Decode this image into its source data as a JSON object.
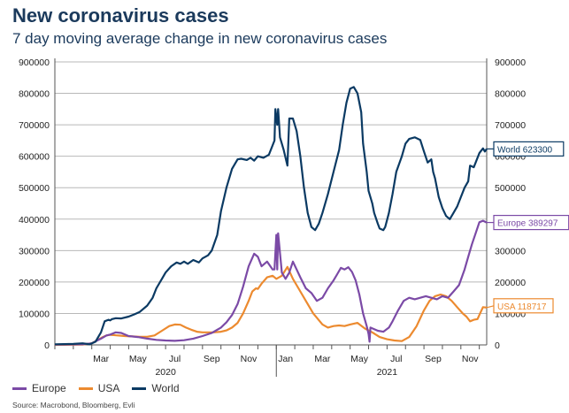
{
  "title": "New coronavirus cases",
  "subtitle": "7 day moving average change in new coronavirus cases",
  "source": "Source: Macrobond, Bloomberg, Evli",
  "colors": {
    "title": "#1b3a5c",
    "world": "#0b3a63",
    "europe": "#7b4aa6",
    "usa": "#ec8a2f",
    "grid": "#b8b8b8",
    "axis_text": "#222222"
  },
  "chart_data": {
    "type": "line",
    "x_unit": "months since Jan 2020 (1.0 = Jan 1, 2020)",
    "xlim": [
      1.0,
      24.4
    ],
    "ylim": [
      0,
      900000
    ],
    "y_ticks_left": [
      "900000",
      "800000",
      "700000",
      "600000",
      "500000",
      "400000",
      "300000",
      "200000",
      "100000",
      "0"
    ],
    "y_ticks_right": [
      "900000",
      "800000",
      "700000",
      "600000",
      "500000",
      "400000",
      "300000",
      "200000",
      "100000",
      "0"
    ],
    "x_tick_labels": [
      {
        "label": "Mar",
        "x": 3.5
      },
      {
        "label": "May",
        "x": 5.5
      },
      {
        "label": "Jul",
        "x": 7.5
      },
      {
        "label": "Sep",
        "x": 9.5
      },
      {
        "label": "Nov",
        "x": 11.5
      },
      {
        "label": "Jan",
        "x": 13.5
      },
      {
        "label": "Mar",
        "x": 15.5
      },
      {
        "label": "May",
        "x": 17.5
      },
      {
        "label": "Jul",
        "x": 19.5
      },
      {
        "label": "Sep",
        "x": 21.5
      },
      {
        "label": "Nov",
        "x": 23.5
      }
    ],
    "year_labels": [
      {
        "label": "2020",
        "x": 7.0
      },
      {
        "label": "2021",
        "x": 19.0
      }
    ],
    "grid": true,
    "legend_position": "bottom-left",
    "legend": [
      "Europe",
      "USA",
      "World"
    ],
    "series": [
      {
        "name": "World",
        "color_key": "world",
        "end_label": "World 623300",
        "x": [
          1.0,
          2.0,
          2.5,
          2.9,
          3.2,
          3.5,
          3.7,
          3.9,
          4.0,
          4.1,
          4.3,
          4.6,
          5.0,
          5.3,
          5.6,
          6.0,
          6.3,
          6.5,
          6.8,
          7.0,
          7.3,
          7.6,
          7.8,
          8.0,
          8.2,
          8.5,
          8.8,
          9.0,
          9.3,
          9.5,
          9.8,
          10.0,
          10.3,
          10.6,
          10.9,
          11.1,
          11.4,
          11.6,
          11.8,
          12.0,
          12.3,
          12.6,
          12.9,
          12.95,
          13.05,
          13.1,
          13.2,
          13.4,
          13.6,
          13.7,
          13.9,
          14.1,
          14.3,
          14.5,
          14.7,
          14.9,
          15.1,
          15.3,
          15.5,
          15.8,
          16.1,
          16.4,
          16.6,
          16.8,
          17.0,
          17.2,
          17.4,
          17.6,
          17.7,
          17.9,
          18.0,
          18.2,
          18.3,
          18.5,
          18.6,
          18.8,
          18.9,
          19.1,
          19.3,
          19.5,
          19.8,
          20.0,
          20.2,
          20.5,
          20.8,
          21.0,
          21.2,
          21.4,
          21.5,
          21.6,
          21.7,
          21.8,
          22.0,
          22.2,
          22.4,
          22.6,
          22.8,
          23.0,
          23.2,
          23.4,
          23.5,
          23.7,
          23.8,
          24.0,
          24.2,
          24.3,
          24.4
        ],
        "y": [
          2000,
          3000,
          5000,
          2000,
          10000,
          40000,
          75000,
          80000,
          78000,
          82000,
          85000,
          84000,
          90000,
          97000,
          105000,
          125000,
          150000,
          180000,
          210000,
          230000,
          250000,
          262000,
          258000,
          265000,
          258000,
          270000,
          262000,
          275000,
          285000,
          300000,
          350000,
          425000,
          500000,
          560000,
          590000,
          592000,
          588000,
          595000,
          586000,
          600000,
          595000,
          605000,
          650000,
          750000,
          700000,
          750000,
          660000,
          620000,
          570000,
          720000,
          720000,
          680000,
          600000,
          500000,
          420000,
          375000,
          365000,
          385000,
          420000,
          480000,
          550000,
          620000,
          700000,
          770000,
          815000,
          820000,
          800000,
          740000,
          640000,
          550000,
          490000,
          450000,
          420000,
          385000,
          370000,
          365000,
          375000,
          420000,
          480000,
          550000,
          600000,
          640000,
          655000,
          660000,
          652000,
          615000,
          580000,
          590000,
          550000,
          530000,
          500000,
          470000,
          435000,
          410000,
          400000,
          420000,
          440000,
          470000,
          500000,
          520000,
          570000,
          565000,
          580000,
          610000,
          625000,
          615000,
          623300
        ]
      },
      {
        "name": "Europe",
        "color_key": "europe",
        "end_label": "Europe 389297",
        "x": [
          1.0,
          2.5,
          3.0,
          3.5,
          3.8,
          4.0,
          4.3,
          4.6,
          5.0,
          5.5,
          6.0,
          6.5,
          7.0,
          7.5,
          8.0,
          8.5,
          9.0,
          9.5,
          10.0,
          10.3,
          10.6,
          10.9,
          11.2,
          11.5,
          11.8,
          12.0,
          12.2,
          12.5,
          12.8,
          12.9,
          13.0,
          13.05,
          13.1,
          13.3,
          13.5,
          13.7,
          13.9,
          14.1,
          14.3,
          14.6,
          14.9,
          15.2,
          15.5,
          15.8,
          16.1,
          16.3,
          16.5,
          16.7,
          16.9,
          17.1,
          17.3,
          17.5,
          17.7,
          17.9,
          18.0,
          18.05,
          18.1,
          18.5,
          18.8,
          19.1,
          19.3,
          19.6,
          19.9,
          20.2,
          20.5,
          20.8,
          21.1,
          21.4,
          21.7,
          22.0,
          22.3,
          22.6,
          22.9,
          23.2,
          23.4,
          23.6,
          23.8,
          24.0,
          24.2,
          24.4
        ],
        "y": [
          1000,
          2000,
          5000,
          20000,
          30000,
          33000,
          40000,
          38000,
          28000,
          25000,
          20000,
          16000,
          14000,
          13000,
          15000,
          20000,
          28000,
          38000,
          55000,
          72000,
          95000,
          130000,
          185000,
          250000,
          290000,
          280000,
          250000,
          265000,
          240000,
          240000,
          350000,
          240000,
          355000,
          230000,
          210000,
          230000,
          265000,
          240000,
          215000,
          180000,
          165000,
          140000,
          150000,
          180000,
          205000,
          225000,
          245000,
          240000,
          247000,
          232000,
          205000,
          160000,
          100000,
          60000,
          35000,
          10000,
          55000,
          45000,
          42000,
          55000,
          75000,
          110000,
          140000,
          150000,
          145000,
          150000,
          155000,
          150000,
          145000,
          155000,
          150000,
          170000,
          190000,
          240000,
          280000,
          320000,
          355000,
          390000,
          395000,
          389297
        ]
      },
      {
        "name": "USA",
        "color_key": "usa",
        "end_label": "USA 118717",
        "x": [
          1.0,
          2.5,
          3.0,
          3.3,
          3.6,
          3.8,
          4.0,
          4.4,
          4.8,
          5.2,
          5.6,
          6.0,
          6.4,
          6.8,
          7.2,
          7.5,
          7.8,
          8.1,
          8.4,
          8.7,
          9.0,
          9.3,
          9.6,
          10.0,
          10.3,
          10.6,
          10.9,
          11.2,
          11.5,
          11.7,
          11.9,
          12.0,
          12.2,
          12.5,
          12.8,
          13.0,
          13.3,
          13.6,
          13.9,
          14.2,
          14.6,
          15.0,
          15.5,
          15.8,
          16.1,
          16.4,
          16.7,
          17.0,
          17.4,
          17.8,
          18.2,
          18.6,
          19.0,
          19.4,
          19.8,
          20.2,
          20.6,
          21.0,
          21.3,
          21.6,
          21.9,
          22.2,
          22.5,
          22.8,
          23.1,
          23.3,
          23.5,
          23.7,
          23.9,
          24.0,
          24.2,
          24.4
        ],
        "y": [
          0,
          1000,
          5000,
          15000,
          25000,
          30000,
          32000,
          30000,
          28000,
          27000,
          26000,
          26000,
          30000,
          45000,
          60000,
          65000,
          64000,
          55000,
          48000,
          42000,
          40000,
          40000,
          40000,
          42000,
          46000,
          55000,
          70000,
          100000,
          140000,
          170000,
          180000,
          178000,
          195000,
          215000,
          220000,
          210000,
          220000,
          248000,
          210000,
          180000,
          140000,
          100000,
          65000,
          55000,
          60000,
          62000,
          60000,
          65000,
          70000,
          52000,
          40000,
          25000,
          18000,
          14000,
          12000,
          25000,
          60000,
          110000,
          140000,
          155000,
          160000,
          155000,
          140000,
          120000,
          100000,
          90000,
          75000,
          80000,
          82000,
          95000,
          120000,
          118717
        ]
      }
    ]
  }
}
